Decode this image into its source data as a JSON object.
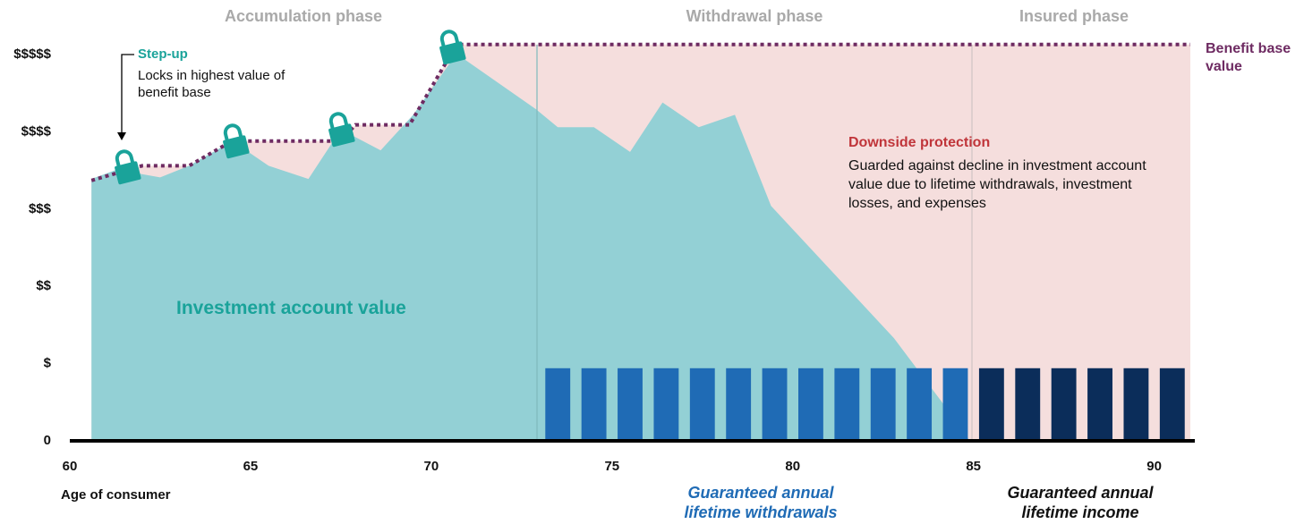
{
  "chart_data": {
    "type": "area",
    "phases": [
      "Accumulation phase",
      "Withdrawal phase",
      "Insured phase"
    ],
    "x_label": "Age of consumer",
    "xlim": [
      60,
      91
    ],
    "xticks": [
      60,
      65,
      70,
      75,
      80,
      85,
      90
    ],
    "ylim": [
      0,
      5.4
    ],
    "yticks": [
      {
        "value": 0,
        "label": "0"
      },
      {
        "value": 1,
        "label": "$"
      },
      {
        "value": 2,
        "label": "$$"
      },
      {
        "value": 3,
        "label": "$$$"
      },
      {
        "value": 4,
        "label": "$$$$"
      },
      {
        "value": 5,
        "label": "$$$$$"
      }
    ],
    "series": [
      {
        "name": "Investment account value",
        "color": "#93d0d5",
        "x": [
          60.6,
          61.3,
          62.5,
          63.3,
          64.5,
          65.5,
          66.6,
          67.5,
          68.6,
          69.5,
          70.7,
          72.9,
          73.5,
          74.5,
          75.5,
          76.4,
          77.4,
          78.4,
          79.4,
          82.8,
          84.1,
          84.9
        ],
        "values": [
          3.39,
          3.51,
          3.41,
          3.56,
          3.88,
          3.56,
          3.39,
          4.03,
          3.76,
          4.22,
          5.01,
          4.29,
          4.06,
          4.06,
          3.74,
          4.38,
          4.06,
          4.22,
          3.04,
          1.33,
          0.52,
          0
        ]
      },
      {
        "name": "Benefit base value",
        "color": "#6e2b62",
        "x": [
          60.6,
          62.0,
          63.3,
          64.3,
          64.9,
          67.5,
          67.9,
          69.4,
          70.7,
          91
        ],
        "values": [
          3.37,
          3.56,
          3.56,
          3.83,
          3.88,
          3.88,
          4.09,
          4.09,
          5.13,
          5.13
        ]
      }
    ],
    "bars": [
      {
        "name": "Guaranteed annual lifetime withdrawals",
        "color": "#1f6bb5",
        "x": [
          73.5,
          74.5,
          75.5,
          76.5,
          77.5,
          78.5,
          79.5,
          80.5,
          81.5,
          82.5,
          83.5,
          84.5
        ],
        "values": [
          0.94,
          0.94,
          0.94,
          0.94,
          0.94,
          0.94,
          0.94,
          0.94,
          0.94,
          0.94,
          0.94,
          0.94
        ]
      },
      {
        "name": "Guaranteed annual lifetime income",
        "color": "#0b2d5a",
        "x": [
          85.5,
          86.5,
          87.5,
          88.5,
          89.5,
          90.5
        ],
        "values": [
          0.94,
          0.94,
          0.94,
          0.94,
          0.94,
          0.94
        ]
      }
    ],
    "annotations": [
      {
        "title": "Step-up",
        "text": "Locks in highest value of benefit base"
      },
      {
        "title": "Downside protection",
        "text": "Guarded against decline in investment account value due to lifetime withdrawals, investment losses, and expenses"
      }
    ]
  }
}
